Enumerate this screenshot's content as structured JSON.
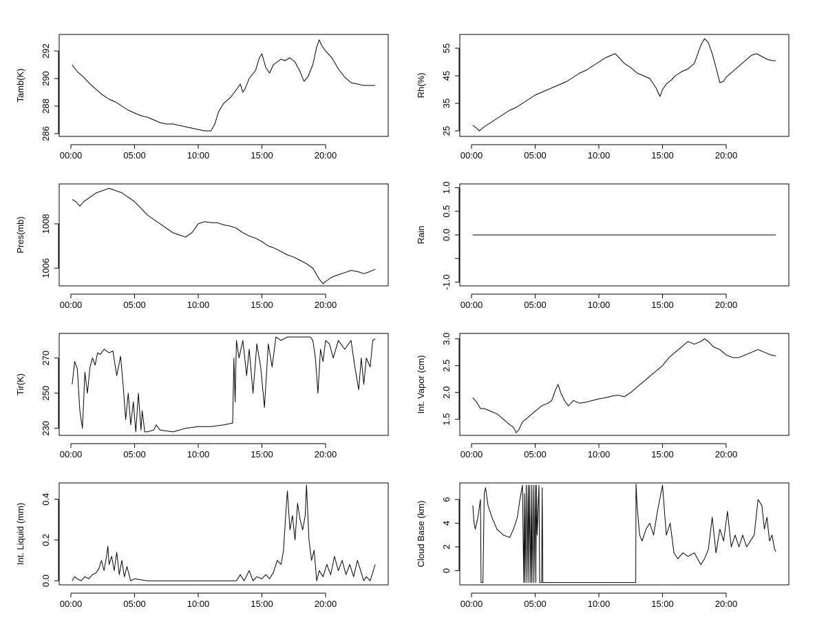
{
  "chart_data": [
    {
      "id": "tamb",
      "type": "line",
      "title": "",
      "xlabel": "",
      "ylabel": "Tamb(K)",
      "x_ticks": [
        "00:00",
        "05:00",
        "10:00",
        "15:00",
        "20:00"
      ],
      "xlim": [
        0,
        24
      ],
      "ylim": [
        285.8,
        293.2
      ],
      "y_ticks": [
        286,
        288,
        290,
        292
      ],
      "y_tick_labels": [
        "286",
        "288",
        "290",
        "292"
      ],
      "x": [
        0.1,
        0.5,
        1,
        1.5,
        2,
        2.5,
        3,
        3.5,
        4,
        4.5,
        5,
        5.5,
        6,
        6.5,
        7,
        7.5,
        8,
        8.5,
        9,
        9.5,
        10,
        10.5,
        11,
        11.3,
        11.6,
        12,
        12.5,
        13,
        13.3,
        13.5,
        13.7,
        14,
        14.5,
        14.8,
        15,
        15.3,
        15.6,
        15.9,
        16.2,
        16.5,
        16.8,
        17.2,
        17.6,
        18,
        18.3,
        18.6,
        19,
        19.3,
        19.5,
        19.7,
        20,
        20.5,
        21,
        21.5,
        22,
        22.5,
        23,
        23.5,
        23.9
      ],
      "values": [
        291.0,
        290.5,
        290.1,
        289.6,
        289.2,
        288.8,
        288.5,
        288.3,
        288.0,
        287.7,
        287.5,
        287.3,
        287.2,
        287.0,
        286.8,
        286.7,
        286.7,
        286.6,
        286.5,
        286.4,
        286.3,
        286.2,
        286.2,
        286.7,
        287.6,
        288.2,
        288.6,
        289.2,
        289.6,
        289.0,
        289.3,
        290.0,
        290.6,
        291.5,
        291.8,
        290.8,
        290.4,
        291.0,
        291.2,
        291.4,
        291.3,
        291.5,
        291.2,
        290.5,
        289.8,
        290.1,
        291.0,
        292.3,
        292.8,
        292.4,
        292.0,
        291.5,
        290.7,
        290.1,
        289.7,
        289.6,
        289.5,
        289.5,
        289.5
      ]
    },
    {
      "id": "rh",
      "type": "line",
      "title": "",
      "xlabel": "",
      "ylabel": "Rh(%)",
      "x_ticks": [
        "00:00",
        "05:00",
        "10:00",
        "15:00",
        "20:00"
      ],
      "xlim": [
        0,
        24
      ],
      "ylim": [
        23,
        60
      ],
      "y_ticks": [
        25,
        35,
        45,
        55
      ],
      "y_tick_labels": [
        "25",
        "35",
        "45",
        "55"
      ],
      "x": [
        0.1,
        0.4,
        0.6,
        1,
        1.5,
        2,
        2.5,
        3,
        3.5,
        4,
        4.5,
        5,
        5.5,
        6,
        6.5,
        7,
        7.5,
        8,
        8.5,
        9,
        9.5,
        10,
        10.5,
        11,
        11.3,
        11.7,
        12,
        12.5,
        13,
        13.5,
        14,
        14.5,
        14.8,
        15,
        15.3,
        15.7,
        16,
        16.5,
        17,
        17.5,
        18,
        18.3,
        18.6,
        18.9,
        19.2,
        19.5,
        19.8,
        20,
        20.5,
        21,
        21.5,
        22,
        22.4,
        22.8,
        23.2,
        23.6,
        23.9
      ],
      "values": [
        27,
        26,
        25,
        26.5,
        28,
        29.5,
        31,
        32.5,
        33.5,
        35,
        36.5,
        38,
        39,
        40,
        41,
        42,
        43,
        44.5,
        46,
        47,
        48.5,
        50,
        51.5,
        52.5,
        53,
        51,
        49.5,
        48,
        46,
        45,
        44,
        40.5,
        37.5,
        40,
        42,
        43.5,
        45,
        46.5,
        47.5,
        49.5,
        56,
        58.5,
        57,
        53,
        48,
        42.5,
        43,
        44.5,
        46.5,
        48.5,
        50.5,
        52.5,
        53,
        52,
        51,
        50.5,
        50.5
      ]
    },
    {
      "id": "pres",
      "type": "line",
      "title": "",
      "xlabel": "",
      "ylabel": "Pres(mb)",
      "x_ticks": [
        "00:00",
        "05:00",
        "10:00",
        "15:00",
        "20:00"
      ],
      "xlim": [
        0,
        24
      ],
      "ylim": [
        1005.2,
        1009.8
      ],
      "y_ticks": [
        1006,
        1008
      ],
      "y_tick_labels": [
        "1006",
        "1008"
      ],
      "x": [
        0.1,
        0.4,
        0.7,
        1,
        1.5,
        2,
        2.5,
        3,
        3.5,
        4,
        4.5,
        5,
        5.5,
        6,
        6.5,
        7,
        7.5,
        8,
        8.5,
        9,
        9.5,
        10,
        10.5,
        11,
        11.5,
        12,
        12.5,
        13,
        13.5,
        14,
        14.5,
        15,
        15.5,
        16,
        16.5,
        17,
        17.5,
        18,
        18.5,
        19,
        19.5,
        19.8,
        20,
        20.5,
        21,
        21.5,
        22,
        22.5,
        23,
        23.5,
        23.9
      ],
      "values": [
        1009.1,
        1009.0,
        1008.8,
        1009.0,
        1009.2,
        1009.4,
        1009.5,
        1009.6,
        1009.5,
        1009.4,
        1009.2,
        1009.0,
        1008.7,
        1008.4,
        1008.2,
        1008.0,
        1007.8,
        1007.6,
        1007.5,
        1007.4,
        1007.6,
        1008.0,
        1008.1,
        1008.05,
        1008.05,
        1007.95,
        1007.9,
        1007.8,
        1007.6,
        1007.45,
        1007.35,
        1007.2,
        1007.0,
        1006.9,
        1006.75,
        1006.6,
        1006.5,
        1006.35,
        1006.2,
        1006.0,
        1005.5,
        1005.3,
        1005.4,
        1005.6,
        1005.7,
        1005.8,
        1005.9,
        1005.85,
        1005.75,
        1005.85,
        1005.95
      ]
    },
    {
      "id": "rain",
      "type": "line",
      "title": "",
      "xlabel": "",
      "ylabel": "Rain",
      "x_ticks": [
        "00:00",
        "05:00",
        "10:00",
        "15:00",
        "20:00"
      ],
      "xlim": [
        0,
        24
      ],
      "ylim": [
        -1.08,
        1.08
      ],
      "y_ticks": [
        -1,
        -0.5,
        0,
        0.5,
        1
      ],
      "y_tick_labels": [
        "-1.0",
        "",
        "0.0",
        "0.5",
        "1.0"
      ],
      "x": [
        0.1,
        23.9
      ],
      "values": [
        0,
        0
      ]
    },
    {
      "id": "tir",
      "type": "line",
      "title": "",
      "xlabel": "",
      "ylabel": "Tir(K)",
      "x_ticks": [
        "00:00",
        "05:00",
        "10:00",
        "15:00",
        "20:00"
      ],
      "xlim": [
        0,
        24
      ],
      "ylim": [
        226,
        284
      ],
      "y_ticks": [
        230,
        250,
        270
      ],
      "y_tick_labels": [
        "230",
        "250",
        "270"
      ],
      "x": [
        0.1,
        0.3,
        0.5,
        0.7,
        0.9,
        1.0,
        1.1,
        1.3,
        1.5,
        1.7,
        1.9,
        2.1,
        2.3,
        2.6,
        3.0,
        3.3,
        3.6,
        3.9,
        4.1,
        4.3,
        4.5,
        4.7,
        4.9,
        5.1,
        5.3,
        5.5,
        5.6,
        5.8,
        6.0,
        6.5,
        6.7,
        7.0,
        8.0,
        9.0,
        10.0,
        11.0,
        12.0,
        12.7,
        12.8,
        12.9,
        13.0,
        13.2,
        13.5,
        13.8,
        14.0,
        14.3,
        14.6,
        14.9,
        15.2,
        15.5,
        15.8,
        16.1,
        16.5,
        17.0,
        17.5,
        18.0,
        18.5,
        18.8,
        19.0,
        19.2,
        19.4,
        19.6,
        19.8,
        20.0,
        20.3,
        20.6,
        21.0,
        21.5,
        22.0,
        22.3,
        22.6,
        22.8,
        23.0,
        23.2,
        23.5,
        23.7,
        23.9
      ],
      "values": [
        255,
        268,
        264,
        240,
        230,
        245,
        262,
        250,
        265,
        270,
        266,
        273,
        272,
        275,
        273,
        274,
        260,
        271,
        255,
        235,
        250,
        232,
        245,
        228,
        250,
        229,
        240,
        228,
        228,
        229,
        232,
        229,
        228,
        230,
        231,
        231,
        232,
        233,
        270,
        245,
        280,
        270,
        280,
        260,
        275,
        250,
        278,
        265,
        242,
        278,
        265,
        282,
        280,
        282,
        282,
        282,
        282,
        282,
        280,
        270,
        250,
        275,
        268,
        280,
        278,
        270,
        280,
        275,
        280,
        265,
        252,
        270,
        255,
        270,
        265,
        280,
        281
      ]
    },
    {
      "id": "vapor",
      "type": "line",
      "title": "",
      "xlabel": "",
      "ylabel": "Int. Vapor (cm)",
      "x_ticks": [
        "00:00",
        "05:00",
        "10:00",
        "15:00",
        "20:00"
      ],
      "xlim": [
        0,
        24
      ],
      "ylim": [
        1.2,
        3.1
      ],
      "y_ticks": [
        1.5,
        2,
        2.5,
        3
      ],
      "y_tick_labels": [
        "1.5",
        "2.0",
        "2.5",
        "3.0"
      ],
      "x": [
        0.1,
        0.4,
        0.7,
        1,
        1.5,
        2,
        2.5,
        3,
        3.3,
        3.5,
        3.7,
        4,
        4.5,
        5,
        5.5,
        6,
        6.3,
        6.6,
        6.8,
        7,
        7.3,
        7.6,
        7.8,
        8,
        8.5,
        9,
        9.5,
        10,
        10.5,
        11,
        11.5,
        12,
        12.5,
        13,
        13.5,
        14,
        14.5,
        15,
        15.5,
        16,
        16.5,
        17,
        17.5,
        18,
        18.3,
        18.6,
        19,
        19.5,
        20,
        20.5,
        21,
        21.5,
        22,
        22.5,
        23,
        23.5,
        23.9
      ],
      "values": [
        1.9,
        1.82,
        1.7,
        1.7,
        1.65,
        1.6,
        1.5,
        1.4,
        1.35,
        1.25,
        1.3,
        1.45,
        1.55,
        1.65,
        1.75,
        1.8,
        1.85,
        2.05,
        2.15,
        2.0,
        1.85,
        1.75,
        1.8,
        1.85,
        1.8,
        1.82,
        1.85,
        1.88,
        1.9,
        1.93,
        1.95,
        1.92,
        2.0,
        2.1,
        2.2,
        2.3,
        2.4,
        2.5,
        2.65,
        2.75,
        2.85,
        2.95,
        2.9,
        2.95,
        3.0,
        2.95,
        2.85,
        2.8,
        2.7,
        2.65,
        2.65,
        2.7,
        2.75,
        2.8,
        2.75,
        2.7,
        2.68
      ]
    },
    {
      "id": "liquid",
      "type": "line",
      "title": "",
      "xlabel": "",
      "ylabel": "Int. Liquid (mm)",
      "x_ticks": [
        "00:00",
        "05:00",
        "10:00",
        "15:00",
        "20:00"
      ],
      "xlim": [
        0,
        24
      ],
      "ylim": [
        -0.02,
        0.48
      ],
      "y_ticks": [
        0,
        0.2,
        0.4
      ],
      "y_tick_labels": [
        "0.0",
        "0.2",
        "0.4"
      ],
      "x": [
        0.1,
        0.3,
        0.5,
        0.8,
        1.1,
        1.4,
        1.7,
        2.0,
        2.2,
        2.4,
        2.6,
        2.8,
        2.9,
        3.0,
        3.2,
        3.4,
        3.6,
        3.8,
        4.0,
        4.2,
        4.4,
        4.7,
        5.0,
        6,
        8,
        10,
        12,
        13.0,
        13.3,
        13.6,
        14.0,
        14.3,
        14.6,
        15.0,
        15.3,
        15.6,
        15.9,
        16.2,
        16.5,
        16.7,
        16.9,
        17.0,
        17.2,
        17.4,
        17.6,
        17.8,
        18.0,
        18.2,
        18.4,
        18.5,
        18.7,
        18.9,
        19.1,
        19.3,
        19.5,
        19.8,
        20.1,
        20.4,
        20.7,
        21.0,
        21.3,
        21.6,
        21.9,
        22.2,
        22.5,
        22.8,
        23.0,
        23.2,
        23.5,
        23.8,
        23.9
      ],
      "values": [
        0.0,
        0.02,
        0.01,
        0.0,
        0.02,
        0.01,
        0.03,
        0.04,
        0.06,
        0.1,
        0.05,
        0.12,
        0.17,
        0.08,
        0.12,
        0.05,
        0.14,
        0.03,
        0.1,
        0.02,
        0.07,
        0.0,
        0.01,
        0.0,
        0.0,
        0.0,
        0.0,
        0.0,
        0.03,
        0.0,
        0.05,
        0.0,
        0.02,
        0.01,
        0.03,
        0.01,
        0.04,
        0.1,
        0.08,
        0.15,
        0.35,
        0.44,
        0.25,
        0.32,
        0.2,
        0.38,
        0.3,
        0.25,
        0.32,
        0.47,
        0.2,
        0.1,
        0.15,
        0.0,
        0.05,
        0.02,
        0.08,
        0.03,
        0.12,
        0.05,
        0.1,
        0.03,
        0.08,
        0.02,
        0.1,
        0.04,
        0.0,
        0.02,
        0.0,
        0.06,
        0.08
      ]
    },
    {
      "id": "cloudbase",
      "type": "line",
      "title": "",
      "xlabel": "",
      "ylabel": "Cloud Base (km)",
      "x_ticks": [
        "00:00",
        "05:00",
        "10:00",
        "15:00",
        "20:00"
      ],
      "xlim": [
        0,
        24
      ],
      "ylim": [
        -1.2,
        7.4
      ],
      "y_ticks": [
        0,
        2,
        4,
        6
      ],
      "y_tick_labels": [
        "0",
        "2",
        "4",
        "6"
      ],
      "x": [
        0.1,
        0.2,
        0.3,
        0.5,
        0.7,
        0.75,
        0.8,
        0.9,
        1.0,
        1.1,
        1.3,
        1.6,
        2.0,
        2.5,
        3.0,
        3.3,
        3.6,
        3.8,
        4.0,
        4.1,
        4.15,
        4.2,
        4.3,
        4.35,
        4.45,
        4.5,
        4.55,
        4.65,
        4.7,
        4.75,
        4.85,
        4.9,
        5.0,
        5.05,
        5.1,
        5.15,
        5.3,
        5.35,
        5.5,
        5.55,
        5.6,
        5.65,
        6.0,
        8.0,
        10.0,
        12.0,
        12.9,
        12.92,
        13.0,
        13.2,
        13.4,
        13.7,
        14.0,
        14.3,
        14.6,
        15.0,
        15.3,
        15.6,
        15.9,
        16.2,
        16.6,
        17.0,
        17.5,
        18.0,
        18.3,
        18.6,
        18.9,
        19.2,
        19.5,
        19.8,
        20.1,
        20.4,
        20.7,
        21.0,
        21.3,
        21.6,
        21.9,
        22.2,
        22.5,
        22.8,
        23.0,
        23.2,
        23.4,
        23.6,
        23.8,
        23.9
      ],
      "values": [
        5.5,
        4.0,
        3.5,
        4.5,
        6.0,
        -1.0,
        -1.0,
        -1.0,
        6.5,
        7.0,
        5.5,
        4.5,
        3.5,
        3.0,
        2.8,
        3.5,
        4.5,
        6.0,
        7.2,
        -1.0,
        6.5,
        -1.0,
        7.2,
        -1.0,
        7.2,
        -1.0,
        7.2,
        -1.0,
        7.2,
        -1.0,
        7.2,
        -1.0,
        7.2,
        -1.0,
        7.2,
        3.0,
        7.2,
        -1.0,
        -1.0,
        7.0,
        -1.0,
        -1.0,
        -1.0,
        -1.0,
        -1.0,
        -1.0,
        -1.0,
        7.3,
        5.5,
        3.0,
        2.5,
        3.5,
        4.0,
        3.0,
        5.0,
        7.2,
        3.0,
        4.0,
        1.5,
        1.0,
        1.5,
        1.2,
        1.5,
        0.5,
        1.0,
        1.8,
        4.5,
        1.5,
        3.5,
        2.5,
        5.0,
        2.0,
        3.0,
        2.0,
        3.0,
        2.0,
        2.5,
        3.0,
        6.0,
        5.5,
        3.5,
        4.5,
        2.5,
        3.0,
        1.8,
        1.6
      ]
    }
  ]
}
